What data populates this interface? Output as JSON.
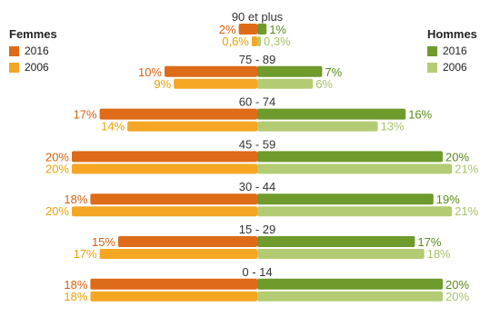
{
  "legend": {
    "women_title": "Femmes",
    "men_title": "Hommes",
    "year_2016": "2016",
    "year_2006": "2006"
  },
  "colors": {
    "women_2016": "#dd6b17",
    "women_2006": "#f5a623",
    "men_2016": "#6f9a2c",
    "men_2006": "#b3cc73",
    "women_2016_text": "#d9600f",
    "women_2006_text": "#f2a100",
    "men_2016_text": "#5a8a1c",
    "men_2006_text": "#a8c26a"
  },
  "chart_data": {
    "type": "bar",
    "categories": [
      "90 et plus",
      "75 - 89",
      "60 - 74",
      "45 - 59",
      "30 - 44",
      "15 - 29",
      "0 - 14"
    ],
    "series": [
      {
        "name": "Femmes 2016",
        "values": [
          2,
          10,
          17,
          20,
          18,
          15,
          18
        ],
        "labels": [
          "2%",
          "10%",
          "17%",
          "20%",
          "18%",
          "15%",
          "18%"
        ]
      },
      {
        "name": "Femmes 2006",
        "values": [
          0.6,
          9,
          14,
          20,
          20,
          17,
          18
        ],
        "labels": [
          "0,6%",
          "9%",
          "14%",
          "20%",
          "20%",
          "17%",
          "18%"
        ]
      },
      {
        "name": "Hommes 2016",
        "values": [
          1,
          7,
          16,
          20,
          19,
          17,
          20
        ],
        "labels": [
          "1%",
          "7%",
          "16%",
          "20%",
          "19%",
          "17%",
          "20%"
        ]
      },
      {
        "name": "Hommes 2006",
        "values": [
          0.3,
          6,
          13,
          21,
          21,
          18,
          20
        ],
        "labels": [
          "0,3%",
          "6%",
          "13%",
          "21%",
          "21%",
          "18%",
          "20%"
        ]
      }
    ],
    "orientation": "horizontal-population-pyramid",
    "legend_placement": "top-left and top-right"
  }
}
